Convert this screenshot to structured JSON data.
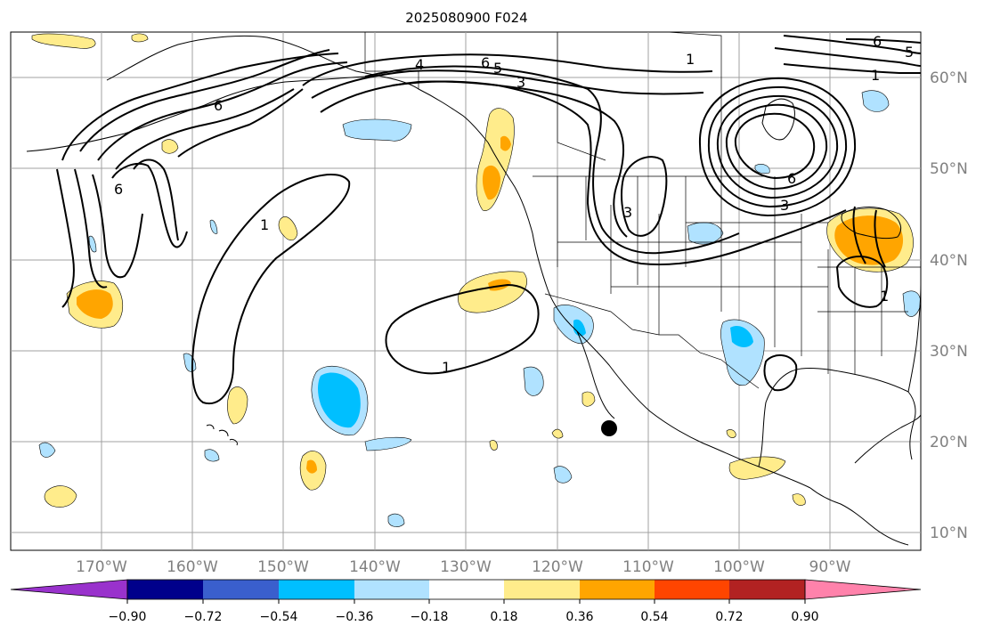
{
  "title": "2025080900 F024",
  "colors": {
    "c_neg_090": "#9932cc",
    "c_neg_072": "#00008b",
    "c_neg_054": "#3a5fcd",
    "c_neg_036": "#00bfff",
    "c_neg_018": "#b0e2ff",
    "c_zero": "#ffffff",
    "c_pos_018": "#ffec8b",
    "c_pos_036": "#ffa500",
    "c_pos_054": "#ff4500",
    "c_pos_072": "#b22222",
    "c_pos_090": "#ff82ab",
    "land_lines": "#000000",
    "grid": "#a0a0a0",
    "axis_labels": "#808080"
  },
  "latitude_labels": [
    "60°N",
    "50°N",
    "40°N",
    "30°N",
    "20°N",
    "10°N"
  ],
  "longitude_labels": [
    "170°W",
    "160°W",
    "150°W",
    "140°W",
    "130°W",
    "120°W",
    "110°W",
    "100°W",
    "90°W"
  ],
  "colorbar": {
    "tick_labels": [
      "−0.90",
      "−0.72",
      "−0.54",
      "−0.36",
      "−0.18",
      "0.18",
      "0.36",
      "0.54",
      "0.72",
      "0.90"
    ]
  },
  "contour_labels": [
    "1",
    "1",
    "1",
    "3",
    "3",
    "3",
    "4",
    "6",
    "6",
    "6",
    "6",
    "6",
    "5",
    "5",
    "1",
    "1"
  ],
  "marker": "storm-position-dot"
}
